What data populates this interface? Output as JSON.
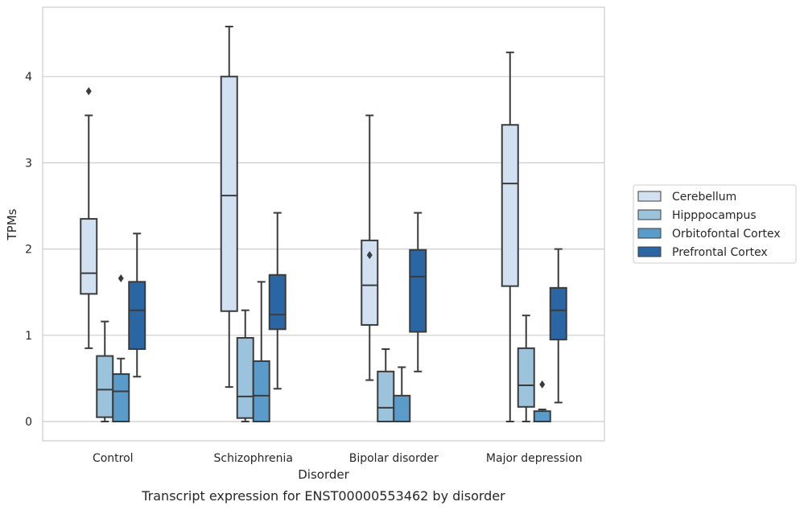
{
  "chart_data": {
    "type": "box",
    "title": "Transcript expression for ENST00000553462 by disorder",
    "xlabel": "Disorder",
    "ylabel": "TPMs",
    "categories": [
      "Control",
      "Schizophrenia",
      "Bipolar disorder",
      "Major depression"
    ],
    "ylim": [
      -0.22,
      4.8
    ],
    "yticks": [
      0,
      1,
      2,
      3,
      4
    ],
    "grid": "horizontal",
    "legend_position": "right",
    "series": [
      {
        "name": "Cerebellum",
        "color": "#d2e1f2",
        "boxes": [
          {
            "whisker_low": 0.85,
            "q1": 1.48,
            "median": 1.72,
            "q3": 2.35,
            "whisker_high": 3.55,
            "outliers": [
              3.83
            ]
          },
          {
            "whisker_low": 0.4,
            "q1": 1.28,
            "median": 2.62,
            "q3": 4.0,
            "whisker_high": 4.58,
            "outliers": []
          },
          {
            "whisker_low": 0.48,
            "q1": 1.12,
            "median": 1.58,
            "q3": 2.1,
            "whisker_high": 3.55,
            "outliers": [
              1.93
            ]
          },
          {
            "whisker_low": 0.0,
            "q1": 1.57,
            "median": 2.76,
            "q3": 3.44,
            "whisker_high": 4.28,
            "outliers": []
          }
        ]
      },
      {
        "name": "Hipppocampus",
        "color": "#9cc3dc",
        "boxes": [
          {
            "whisker_low": 0.0,
            "q1": 0.05,
            "median": 0.37,
            "q3": 0.76,
            "whisker_high": 1.16,
            "outliers": []
          },
          {
            "whisker_low": 0.0,
            "q1": 0.04,
            "median": 0.29,
            "q3": 0.97,
            "whisker_high": 1.29,
            "outliers": []
          },
          {
            "whisker_low": 0.0,
            "q1": 0.0,
            "median": 0.16,
            "q3": 0.58,
            "whisker_high": 0.84,
            "outliers": []
          },
          {
            "whisker_low": 0.0,
            "q1": 0.17,
            "median": 0.42,
            "q3": 0.85,
            "whisker_high": 1.23,
            "outliers": []
          }
        ]
      },
      {
        "name": "Orbitofontal Cortex",
        "color": "#5a9bc9",
        "boxes": [
          {
            "whisker_low": 0.0,
            "q1": 0.0,
            "median": 0.35,
            "q3": 0.55,
            "whisker_high": 0.73,
            "outliers": [
              1.66
            ]
          },
          {
            "whisker_low": 0.0,
            "q1": 0.0,
            "median": 0.3,
            "q3": 0.7,
            "whisker_high": 1.62,
            "outliers": []
          },
          {
            "whisker_low": 0.0,
            "q1": 0.0,
            "median": 0.0,
            "q3": 0.3,
            "whisker_high": 0.63,
            "outliers": []
          },
          {
            "whisker_low": 0.0,
            "q1": 0.0,
            "median": 0.0,
            "q3": 0.12,
            "whisker_high": 0.14,
            "outliers": [
              0.43
            ]
          }
        ]
      },
      {
        "name": "Prefrontal Cortex",
        "color": "#2b66a4",
        "boxes": [
          {
            "whisker_low": 0.52,
            "q1": 0.84,
            "median": 1.29,
            "q3": 1.62,
            "whisker_high": 2.18,
            "outliers": []
          },
          {
            "whisker_low": 0.38,
            "q1": 1.07,
            "median": 1.24,
            "q3": 1.7,
            "whisker_high": 2.42,
            "outliers": []
          },
          {
            "whisker_low": 0.58,
            "q1": 1.04,
            "median": 1.68,
            "q3": 1.99,
            "whisker_high": 2.42,
            "outliers": []
          },
          {
            "whisker_low": 0.22,
            "q1": 0.95,
            "median": 1.29,
            "q3": 1.55,
            "whisker_high": 2.0,
            "outliers": []
          }
        ]
      }
    ]
  }
}
